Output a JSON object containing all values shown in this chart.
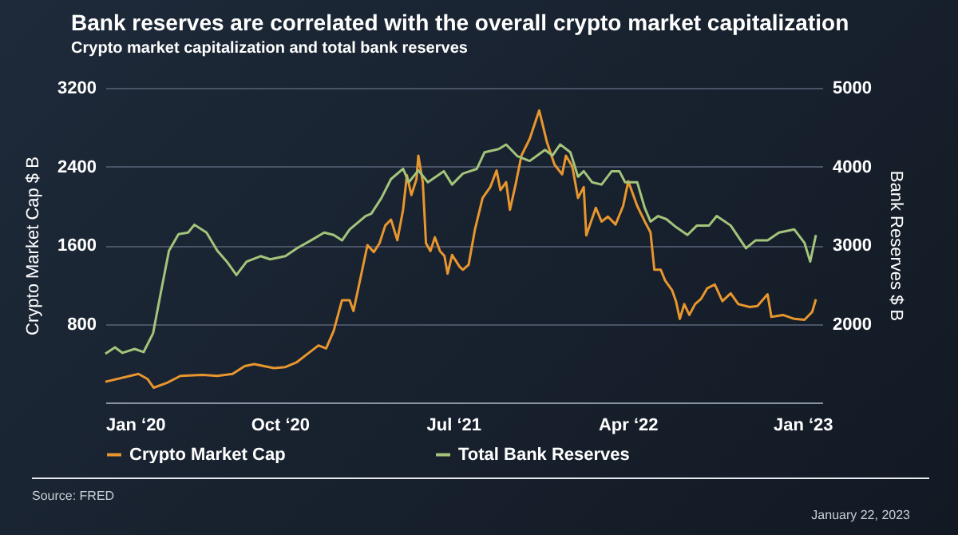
{
  "chart_data": {
    "type": "line",
    "title": "Bank reserves are correlated with the overall crypto market capitalization",
    "subtitle": "Crypto market capitalization and total bank reserves",
    "ylabel": "Crypto Market Cap $ B",
    "y2label": "Bank Reserves $ B",
    "xlim": [
      "2020-01-01",
      "2023-02-01"
    ],
    "xticks": [
      {
        "value": "2020-01-01",
        "label": "Jan ‘20"
      },
      {
        "value": "2020-10-01",
        "label": "Oct ‘20"
      },
      {
        "value": "2021-07-01",
        "label": "Jul ‘21"
      },
      {
        "value": "2022-04-01",
        "label": "Apr ‘22"
      },
      {
        "value": "2023-01-01",
        "label": "Jan ‘23"
      }
    ],
    "ylim": [
      0,
      3200
    ],
    "yticks": [
      {
        "value": 0,
        "label": null
      },
      800,
      1600,
      2400,
      3200
    ],
    "y2lim": [
      1000,
      5000
    ],
    "y2ticks": [
      {
        "value": 1000,
        "label": null
      },
      2000,
      3000,
      4000,
      5000
    ],
    "grid": "y",
    "legend": "bottom",
    "annotations": [
      "Source: FRED",
      "January 22, 2023"
    ],
    "series": [
      {
        "name": "Crypto Market Cap",
        "color": "#e8962e",
        "x": [
          "2020-01-01",
          "2020-02-22",
          "2020-03-07",
          "2020-03-17",
          "2020-04-07",
          "2020-04-28",
          "2020-06-01",
          "2020-06-25",
          "2020-07-19",
          "2020-08-07",
          "2020-08-22",
          "2020-09-22",
          "2020-10-10",
          "2020-10-28",
          "2020-11-13",
          "2020-12-01",
          "2020-12-13",
          "2020-12-25",
          "2021-01-07",
          "2021-01-19",
          "2021-01-25",
          "2021-02-16",
          "2021-02-26",
          "2021-03-07",
          "2021-03-16",
          "2021-03-25",
          "2021-04-04",
          "2021-04-13",
          "2021-04-19",
          "2021-04-26",
          "2021-05-04",
          "2021-05-07",
          "2021-05-14",
          "2021-05-19",
          "2021-05-26",
          "2021-06-02",
          "2021-06-10",
          "2021-06-17",
          "2021-06-22",
          "2021-06-29",
          "2021-07-11",
          "2021-07-16",
          "2021-07-25",
          "2021-08-04",
          "2021-08-16",
          "2021-08-28",
          "2021-09-07",
          "2021-09-13",
          "2021-09-22",
          "2021-09-28",
          "2021-10-07",
          "2021-10-16",
          "2021-10-29",
          "2021-11-13",
          "2021-11-25",
          "2021-12-07",
          "2021-12-19",
          "2021-12-25",
          "2022-01-04",
          "2022-01-13",
          "2022-01-22",
          "2022-01-26",
          "2022-02-10",
          "2022-02-19",
          "2022-03-01",
          "2022-03-13",
          "2022-03-25",
          "2022-04-02",
          "2022-04-16",
          "2022-04-28",
          "2022-05-07",
          "2022-05-13",
          "2022-05-23",
          "2022-05-30",
          "2022-06-10",
          "2022-06-16",
          "2022-06-22",
          "2022-06-29",
          "2022-07-07",
          "2022-07-16",
          "2022-07-25",
          "2022-08-04",
          "2022-08-16",
          "2022-08-28",
          "2022-09-10",
          "2022-09-22",
          "2022-10-10",
          "2022-10-22",
          "2022-11-07",
          "2022-11-13",
          "2022-12-01",
          "2022-12-19",
          "2023-01-04",
          "2023-01-16",
          "2023-01-22"
        ],
        "values": [
          210,
          290,
          240,
          150,
          200,
          270,
          280,
          270,
          290,
          370,
          390,
          350,
          360,
          410,
          490,
          580,
          550,
          730,
          1040,
          1040,
          930,
          1600,
          1530,
          1620,
          1800,
          1860,
          1650,
          1960,
          2310,
          2110,
          2270,
          2510,
          2240,
          1620,
          1540,
          1680,
          1540,
          1490,
          1310,
          1500,
          1380,
          1350,
          1400,
          1760,
          2080,
          2190,
          2360,
          2160,
          2240,
          1960,
          2220,
          2510,
          2680,
          2970,
          2650,
          2420,
          2320,
          2510,
          2400,
          2080,
          2190,
          1700,
          1980,
          1840,
          1890,
          1810,
          2000,
          2250,
          2000,
          1840,
          1730,
          1350,
          1350,
          1240,
          1140,
          1030,
          850,
          1000,
          890,
          1000,
          1050,
          1160,
          1200,
          1030,
          1110,
          1000,
          970,
          980,
          1100,
          870,
          890,
          850,
          840,
          920,
          1050
        ]
      },
      {
        "name": "Total Bank Reserves",
        "color": "#a3c47a",
        "axis": "y2",
        "x": [
          "2020-01-01",
          "2020-01-16",
          "2020-01-28",
          "2020-02-16",
          "2020-03-01",
          "2020-03-16",
          "2020-03-28",
          "2020-04-10",
          "2020-04-25",
          "2020-05-10",
          "2020-05-20",
          "2020-06-08",
          "2020-06-25",
          "2020-07-10",
          "2020-07-25",
          "2020-08-10",
          "2020-09-01",
          "2020-09-16",
          "2020-10-10",
          "2020-10-28",
          "2020-11-19",
          "2020-12-10",
          "2020-12-25",
          "2021-01-07",
          "2021-01-19",
          "2021-02-13",
          "2021-02-22",
          "2021-03-10",
          "2021-03-25",
          "2021-04-13",
          "2021-04-22",
          "2021-05-07",
          "2021-05-22",
          "2021-06-16",
          "2021-06-29",
          "2021-07-16",
          "2021-08-07",
          "2021-08-19",
          "2021-09-10",
          "2021-09-22",
          "2021-10-10",
          "2021-10-29",
          "2021-11-22",
          "2021-12-04",
          "2021-12-16",
          "2022-01-01",
          "2022-01-13",
          "2022-01-22",
          "2022-02-04",
          "2022-02-19",
          "2022-03-07",
          "2022-03-19",
          "2022-03-28",
          "2022-04-16",
          "2022-04-28",
          "2022-05-07",
          "2022-05-19",
          "2022-06-01",
          "2022-06-16",
          "2022-07-04",
          "2022-07-19",
          "2022-08-07",
          "2022-08-19",
          "2022-09-10",
          "2022-10-04",
          "2022-10-19",
          "2022-11-07",
          "2022-11-25",
          "2022-12-19",
          "2023-01-04",
          "2023-01-13",
          "2023-01-22"
        ],
        "values": [
          1620,
          1700,
          1630,
          1680,
          1640,
          1880,
          2390,
          2930,
          3140,
          3160,
          3260,
          3160,
          2930,
          2790,
          2620,
          2790,
          2860,
          2820,
          2860,
          2960,
          3060,
          3160,
          3130,
          3060,
          3200,
          3370,
          3400,
          3600,
          3840,
          3970,
          3800,
          3950,
          3800,
          3940,
          3770,
          3910,
          3970,
          4180,
          4220,
          4280,
          4130,
          4070,
          4210,
          4140,
          4280,
          4180,
          3870,
          3940,
          3800,
          3770,
          3940,
          3940,
          3800,
          3800,
          3470,
          3300,
          3370,
          3330,
          3230,
          3130,
          3250,
          3250,
          3370,
          3250,
          2960,
          3060,
          3060,
          3160,
          3200,
          3030,
          2790,
          3130
        ]
      }
    ]
  }
}
